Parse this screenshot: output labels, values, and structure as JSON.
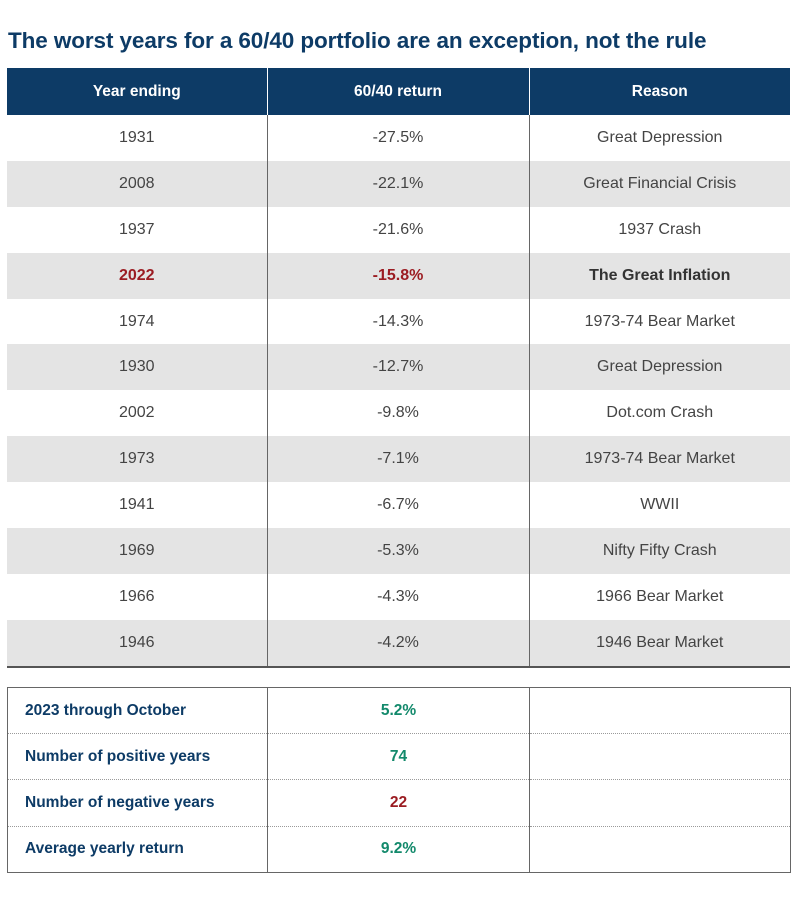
{
  "title": "The worst years for a 60/40 portfolio are an exception, not the rule",
  "colors": {
    "header_bg": "#0d3b66",
    "highlight_red": "#9b1c22",
    "positive_green": "#12896b",
    "row_stripe": "#e4e4e4"
  },
  "chart_data": {
    "type": "table",
    "columns": [
      "Year ending",
      "60/40 return",
      "Reason"
    ],
    "rows": [
      {
        "year": "1931",
        "return": "-27.5%",
        "reason": "Great Depression",
        "highlight": false
      },
      {
        "year": "2008",
        "return": "-22.1%",
        "reason": "Great Financial Crisis",
        "highlight": false
      },
      {
        "year": "1937",
        "return": "-21.6%",
        "reason": "1937 Crash",
        "highlight": false
      },
      {
        "year": "2022",
        "return": "-15.8%",
        "reason": "The Great Inflation",
        "highlight": true
      },
      {
        "year": "1974",
        "return": "-14.3%",
        "reason": "1973-74 Bear Market",
        "highlight": false
      },
      {
        "year": "1930",
        "return": "-12.7%",
        "reason": "Great Depression",
        "highlight": false
      },
      {
        "year": "2002",
        "return": "-9.8%",
        "reason": "Dot.com Crash",
        "highlight": false
      },
      {
        "year": "1973",
        "return": "-7.1%",
        "reason": "1973-74 Bear Market",
        "highlight": false
      },
      {
        "year": "1941",
        "return": "-6.7%",
        "reason": "WWII",
        "highlight": false
      },
      {
        "year": "1969",
        "return": "-5.3%",
        "reason": "Nifty Fifty Crash",
        "highlight": false
      },
      {
        "year": "1966",
        "return": "-4.3%",
        "reason": "1966 Bear Market",
        "highlight": false
      },
      {
        "year": "1946",
        "return": "-4.2%",
        "reason": "1946 Bear Market",
        "highlight": false
      }
    ],
    "summary": [
      {
        "label": "2023 through October",
        "value": "5.2%",
        "tone": "positive"
      },
      {
        "label": "Number of positive years",
        "value": "74",
        "tone": "positive"
      },
      {
        "label": "Number of negative years",
        "value": "22",
        "tone": "negative"
      },
      {
        "label": "Average yearly return",
        "value": "9.2%",
        "tone": "positive"
      }
    ]
  }
}
